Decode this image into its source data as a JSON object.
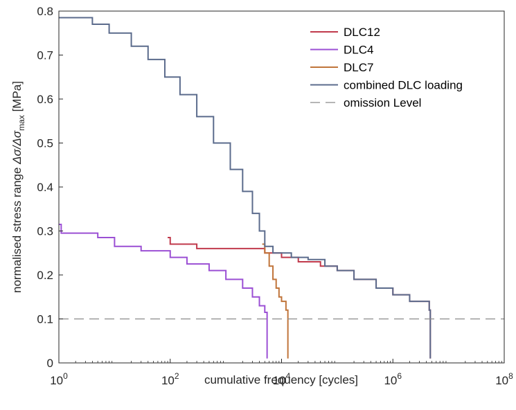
{
  "chart_data": {
    "type": "line",
    "xlabel": "cumulative frequency [cycles]",
    "ylabel": {
      "prefix": "normalised stress range ",
      "math": "Δσ/Δσ",
      "subscript": "max",
      "suffix": " [MPa]"
    },
    "x_scale": "log",
    "xlim": [
      1,
      100000000
    ],
    "ylim": [
      0,
      0.8
    ],
    "x_ticks": [
      {
        "value": 1,
        "base": "10",
        "exp": "0"
      },
      {
        "value": 100,
        "base": "10",
        "exp": "2"
      },
      {
        "value": 10000,
        "base": "10",
        "exp": "4"
      },
      {
        "value": 1000000,
        "base": "10",
        "exp": "6"
      },
      {
        "value": 100000000,
        "base": "10",
        "exp": "8"
      }
    ],
    "y_ticks": [
      {
        "value": 0,
        "label": "0"
      },
      {
        "value": 0.1,
        "label": "0.1"
      },
      {
        "value": 0.2,
        "label": "0.2"
      },
      {
        "value": 0.3,
        "label": "0.3"
      },
      {
        "value": 0.4,
        "label": "0.4"
      },
      {
        "value": 0.5,
        "label": "0.5"
      },
      {
        "value": 0.6,
        "label": "0.6"
      },
      {
        "value": 0.7,
        "label": "0.7"
      },
      {
        "value": 0.8,
        "label": "0.8"
      }
    ],
    "grid": false,
    "legend_position": "top-right",
    "series": [
      {
        "name": "DLC12",
        "color": "#c0394b",
        "style": "step",
        "points": [
          [
            90,
            0.285
          ],
          [
            100,
            0.27
          ],
          [
            300,
            0.26
          ],
          [
            5000,
            0.25
          ],
          [
            10000,
            0.24
          ],
          [
            20000,
            0.23
          ],
          [
            50000,
            0.22
          ],
          [
            100000,
            0.21
          ],
          [
            200000,
            0.19
          ],
          [
            500000,
            0.17
          ],
          [
            1000000,
            0.155
          ],
          [
            2000000,
            0.14
          ],
          [
            4500000,
            0.12
          ],
          [
            4700000,
            0.01
          ]
        ]
      },
      {
        "name": "DLC4",
        "color": "#9b4fd4",
        "style": "step",
        "points": [
          [
            1,
            0.315
          ],
          [
            1.1,
            0.295
          ],
          [
            5,
            0.285
          ],
          [
            10,
            0.265
          ],
          [
            30,
            0.255
          ],
          [
            100,
            0.24
          ],
          [
            200,
            0.225
          ],
          [
            500,
            0.21
          ],
          [
            1000,
            0.19
          ],
          [
            2000,
            0.17
          ],
          [
            3000,
            0.15
          ],
          [
            4000,
            0.13
          ],
          [
            5000,
            0.115
          ],
          [
            5500,
            0.01
          ]
        ]
      },
      {
        "name": "DLC7",
        "color": "#c0743a",
        "style": "step",
        "points": [
          [
            4500,
            0.27
          ],
          [
            5000,
            0.25
          ],
          [
            6000,
            0.22
          ],
          [
            7000,
            0.19
          ],
          [
            8000,
            0.17
          ],
          [
            9000,
            0.15
          ],
          [
            10000,
            0.14
          ],
          [
            12000,
            0.12
          ],
          [
            13000,
            0.01
          ]
        ]
      },
      {
        "name": "combined DLC loading",
        "color": "#5b6b8c",
        "style": "step",
        "points": [
          [
            1,
            0.785
          ],
          [
            4,
            0.77
          ],
          [
            8,
            0.75
          ],
          [
            20,
            0.72
          ],
          [
            40,
            0.69
          ],
          [
            80,
            0.65
          ],
          [
            150,
            0.61
          ],
          [
            300,
            0.56
          ],
          [
            600,
            0.5
          ],
          [
            1200,
            0.44
          ],
          [
            2000,
            0.39
          ],
          [
            3000,
            0.34
          ],
          [
            4000,
            0.3
          ],
          [
            5000,
            0.265
          ],
          [
            7000,
            0.25
          ],
          [
            15000,
            0.24
          ],
          [
            30000,
            0.235
          ],
          [
            60000,
            0.22
          ],
          [
            100000,
            0.21
          ],
          [
            200000,
            0.19
          ],
          [
            500000,
            0.17
          ],
          [
            1000000,
            0.155
          ],
          [
            2000000,
            0.14
          ],
          [
            4500000,
            0.12
          ],
          [
            4700000,
            0.01
          ]
        ]
      },
      {
        "name": "omission Level",
        "color": "#8a8a8a",
        "style": "dashed",
        "points": [
          [
            1,
            0.1
          ],
          [
            100000000,
            0.1
          ]
        ]
      }
    ]
  }
}
